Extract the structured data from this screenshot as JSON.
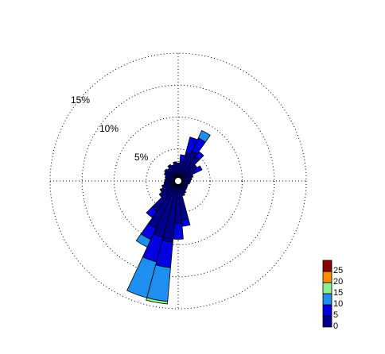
{
  "chart_data": {
    "type": "wind-rose",
    "title": "",
    "ring_labels": [
      "5%",
      "10%",
      "15%"
    ],
    "ring_values": [
      5,
      10,
      15,
      20
    ],
    "rmax": 20,
    "grid": true,
    "legend": {
      "position": "bottom-right",
      "tick_labels": [
        "0",
        "5",
        "10",
        "15",
        "20",
        "25"
      ]
    },
    "bin_colors": [
      "#00008b",
      "#0000e0",
      "#1e8ff0",
      "#90ee90",
      "#ff8c00",
      "#8b0000"
    ],
    "sector_width_deg": 10,
    "sectors": [
      {
        "direction_deg": 0,
        "segments": [
          2.2
        ]
      },
      {
        "direction_deg": 10,
        "segments": [
          2.5,
          1.0
        ]
      },
      {
        "direction_deg": 20,
        "segments": [
          4.0,
          2.5
        ]
      },
      {
        "direction_deg": 30,
        "segments": [
          4.5,
          2.3,
          1.3
        ]
      },
      {
        "direction_deg": 40,
        "segments": [
          4.0,
          1.0
        ]
      },
      {
        "direction_deg": 50,
        "segments": [
          3.0
        ]
      },
      {
        "direction_deg": 60,
        "segments": [
          2.3,
          1.2
        ]
      },
      {
        "direction_deg": 70,
        "segments": [
          1.8
        ]
      },
      {
        "direction_deg": 80,
        "segments": [
          1.5
        ]
      },
      {
        "direction_deg": 90,
        "segments": [
          1.3
        ]
      },
      {
        "direction_deg": 100,
        "segments": [
          1.2
        ]
      },
      {
        "direction_deg": 110,
        "segments": [
          1.0
        ]
      },
      {
        "direction_deg": 120,
        "segments": [
          1.0
        ]
      },
      {
        "direction_deg": 130,
        "segments": [
          1.1
        ]
      },
      {
        "direction_deg": 140,
        "segments": [
          1.2
        ]
      },
      {
        "direction_deg": 150,
        "segments": [
          1.5
        ]
      },
      {
        "direction_deg": 160,
        "segments": [
          1.8
        ]
      },
      {
        "direction_deg": 170,
        "segments": [
          5.5,
          1.0
        ]
      },
      {
        "direction_deg": 180,
        "segments": [
          6.0,
          2.5
        ]
      },
      {
        "direction_deg": 190,
        "segments": [
          9.0,
          4.0,
          5.3,
          0.4
        ]
      },
      {
        "direction_deg": 200,
        "segments": [
          8.5,
          4.0,
          5.8
        ]
      },
      {
        "direction_deg": 210,
        "segments": [
          7.5,
          2.0,
          1.3
        ]
      },
      {
        "direction_deg": 220,
        "segments": [
          5.2,
          1.2
        ]
      },
      {
        "direction_deg": 230,
        "segments": [
          3.0
        ]
      },
      {
        "direction_deg": 240,
        "segments": [
          2.5
        ]
      },
      {
        "direction_deg": 250,
        "segments": [
          2.0
        ]
      },
      {
        "direction_deg": 260,
        "segments": [
          1.6
        ]
      },
      {
        "direction_deg": 270,
        "segments": [
          1.5
        ]
      },
      {
        "direction_deg": 280,
        "segments": [
          1.4
        ]
      },
      {
        "direction_deg": 290,
        "segments": [
          1.5
        ]
      },
      {
        "direction_deg": 300,
        "segments": [
          1.8
        ]
      },
      {
        "direction_deg": 310,
        "segments": [
          2.0
        ]
      },
      {
        "direction_deg": 320,
        "segments": [
          1.8
        ]
      },
      {
        "direction_deg": 330,
        "segments": [
          2.2
        ]
      },
      {
        "direction_deg": 340,
        "segments": [
          2.0
        ]
      },
      {
        "direction_deg": 350,
        "segments": [
          2.4
        ]
      }
    ]
  }
}
